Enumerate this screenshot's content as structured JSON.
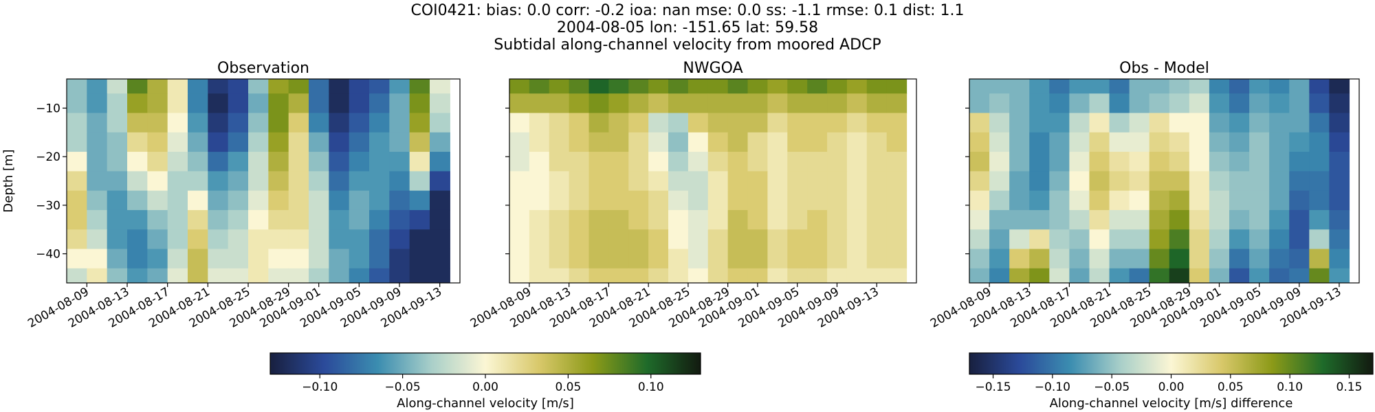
{
  "figure": {
    "title_lines": [
      "COI0421: bias: 0.0  corr: -0.2  ioa: nan  mse: 0.0  ss: -1.1  rmse: 0.1  dist: 1.1",
      "2004-08-05 lon: -151.65 lat: 59.58",
      "Subtidal along-channel velocity from moored ADCP"
    ]
  },
  "colors": {
    "colormap": [
      "#18203f",
      "#2b4a9a",
      "#3b8db0",
      "#a9cfc9",
      "#fbf6d4",
      "#d8c86a",
      "#8c9a18",
      "#1f6b2a",
      "#121a10"
    ]
  },
  "chart_data": [
    {
      "type": "heatmap",
      "panel": "observation",
      "title": "Observation",
      "ylabel": "Depth [m]",
      "xlabel": "",
      "x_range": [
        "2004-08-07",
        "2004-09-15"
      ],
      "x_ticks": [
        "2004-08-09",
        "2004-08-13",
        "2004-08-17",
        "2004-08-21",
        "2004-08-25",
        "2004-08-29",
        "2004-09-01",
        "2004-09-05",
        "2004-09-09",
        "2004-09-13"
      ],
      "ylim": [
        -46,
        -4
      ],
      "y_ticks": [
        -10,
        -20,
        -30,
        -40
      ],
      "y_tick_labels": [
        "−10",
        "−20",
        "−30",
        "−40"
      ],
      "depths": [
        -5,
        -9,
        -13,
        -17,
        -21,
        -25,
        -29,
        -33,
        -37,
        -41,
        -45
      ],
      "dates": [
        "2004-08-08",
        "2004-08-10",
        "2004-08-12",
        "2004-08-14",
        "2004-08-16",
        "2004-08-18",
        "2004-08-20",
        "2004-08-22",
        "2004-08-24",
        "2004-08-26",
        "2004-08-28",
        "2004-08-30",
        "2004-09-01",
        "2004-09-03",
        "2004-09-05",
        "2004-09-07",
        "2004-09-09",
        "2004-09-11",
        "2004-09-13"
      ],
      "values": [
        [
          -0.04,
          -0.06,
          -0.02,
          0.08,
          0.05,
          0.01,
          -0.07,
          -0.11,
          -0.1,
          -0.04,
          0.06,
          0.07,
          -0.08,
          -0.12,
          -0.1,
          -0.09,
          -0.06,
          0.08,
          -0.01
        ],
        [
          -0.04,
          -0.06,
          -0.03,
          0.06,
          0.05,
          0.01,
          -0.07,
          -0.12,
          -0.1,
          -0.05,
          0.07,
          0.05,
          -0.08,
          -0.12,
          -0.1,
          -0.08,
          -0.05,
          0.07,
          -0.02
        ],
        [
          -0.03,
          -0.05,
          -0.03,
          0.04,
          0.04,
          0.0,
          -0.06,
          -0.11,
          -0.09,
          -0.04,
          0.07,
          0.03,
          -0.07,
          -0.11,
          -0.09,
          -0.07,
          -0.05,
          0.06,
          -0.03
        ],
        [
          -0.03,
          -0.05,
          -0.04,
          0.02,
          0.03,
          -0.01,
          -0.05,
          -0.1,
          -0.08,
          -0.03,
          0.06,
          0.02,
          -0.05,
          -0.1,
          -0.08,
          -0.06,
          -0.05,
          0.04,
          -0.05
        ],
        [
          0.0,
          -0.05,
          -0.04,
          0.0,
          0.02,
          -0.02,
          -0.04,
          -0.08,
          -0.06,
          -0.02,
          0.05,
          0.02,
          -0.04,
          -0.09,
          -0.07,
          -0.06,
          -0.06,
          0.01,
          -0.07
        ],
        [
          0.02,
          -0.05,
          -0.05,
          -0.02,
          0.0,
          -0.03,
          -0.03,
          -0.06,
          -0.05,
          -0.02,
          0.04,
          0.02,
          -0.03,
          -0.08,
          -0.06,
          -0.06,
          -0.07,
          -0.03,
          -0.1
        ],
        [
          0.03,
          -0.04,
          -0.06,
          -0.04,
          -0.02,
          -0.03,
          0.0,
          -0.05,
          -0.04,
          -0.01,
          0.03,
          0.02,
          -0.02,
          -0.07,
          -0.05,
          -0.06,
          -0.08,
          -0.07,
          -0.12
        ],
        [
          0.03,
          -0.03,
          -0.06,
          -0.06,
          -0.04,
          -0.03,
          0.02,
          -0.04,
          -0.03,
          0.0,
          0.02,
          0.02,
          -0.02,
          -0.06,
          -0.05,
          -0.07,
          -0.09,
          -0.1,
          -0.12
        ],
        [
          0.02,
          -0.02,
          -0.06,
          -0.07,
          -0.05,
          -0.03,
          0.03,
          -0.03,
          -0.02,
          0.01,
          0.01,
          0.01,
          -0.02,
          -0.06,
          -0.06,
          -0.08,
          -0.1,
          -0.12,
          -0.12
        ],
        [
          0.0,
          0.0,
          -0.05,
          -0.07,
          -0.06,
          -0.02,
          0.04,
          -0.02,
          -0.02,
          0.01,
          0.0,
          0.0,
          -0.02,
          -0.05,
          -0.06,
          -0.08,
          -0.11,
          -0.12,
          -0.12
        ],
        [
          -0.02,
          0.01,
          -0.04,
          -0.06,
          -0.05,
          -0.01,
          0.04,
          -0.01,
          -0.01,
          0.01,
          -0.01,
          -0.01,
          -0.03,
          -0.05,
          -0.07,
          -0.09,
          -0.11,
          -0.12,
          -0.12
        ]
      ]
    },
    {
      "type": "heatmap",
      "panel": "model",
      "title": "NWGOA",
      "ylabel": "",
      "xlabel": "",
      "x_range": [
        "2004-08-07",
        "2004-09-17"
      ],
      "x_ticks": [
        "2004-08-09",
        "2004-08-13",
        "2004-08-17",
        "2004-08-21",
        "2004-08-25",
        "2004-08-29",
        "2004-09-01",
        "2004-09-05",
        "2004-09-09",
        "2004-09-13"
      ],
      "ylim": [
        -46,
        -4
      ],
      "y_ticks": [
        -10,
        -20,
        -30,
        -40
      ],
      "y_tick_labels": [
        "",
        "",
        "",
        ""
      ],
      "depths": [
        -5,
        -9,
        -13,
        -17,
        -21,
        -25,
        -29,
        -33,
        -37,
        -41,
        -45
      ],
      "dates": [
        "2004-08-08",
        "2004-08-10",
        "2004-08-12",
        "2004-08-14",
        "2004-08-16",
        "2004-08-18",
        "2004-08-20",
        "2004-08-22",
        "2004-08-24",
        "2004-08-26",
        "2004-08-28",
        "2004-08-30",
        "2004-09-01",
        "2004-09-03",
        "2004-09-05",
        "2004-09-07",
        "2004-09-09",
        "2004-09-11",
        "2004-09-13",
        "2004-09-15"
      ],
      "values": [
        [
          0.07,
          0.08,
          0.07,
          0.08,
          0.1,
          0.09,
          0.08,
          0.07,
          0.08,
          0.07,
          0.07,
          0.08,
          0.07,
          0.06,
          0.07,
          0.08,
          0.07,
          0.06,
          0.07,
          0.07
        ],
        [
          0.05,
          0.05,
          0.05,
          0.06,
          0.07,
          0.06,
          0.05,
          0.04,
          0.05,
          0.05,
          0.05,
          0.05,
          0.05,
          0.04,
          0.05,
          0.05,
          0.05,
          0.04,
          0.05,
          0.05
        ],
        [
          0.0,
          0.01,
          0.02,
          0.03,
          0.05,
          0.04,
          0.03,
          -0.02,
          -0.03,
          0.03,
          0.04,
          0.04,
          0.04,
          0.02,
          0.03,
          0.03,
          0.03,
          0.02,
          0.03,
          0.03
        ],
        [
          -0.01,
          0.01,
          0.02,
          0.03,
          0.04,
          0.04,
          0.02,
          -0.01,
          -0.04,
          0.0,
          0.03,
          0.04,
          0.02,
          0.01,
          0.03,
          0.03,
          0.02,
          0.01,
          0.02,
          0.03
        ],
        [
          -0.01,
          0.0,
          0.02,
          0.02,
          0.03,
          0.03,
          0.02,
          0.0,
          -0.03,
          -0.01,
          0.02,
          0.03,
          0.02,
          0.01,
          0.02,
          0.02,
          0.02,
          0.01,
          0.02,
          0.02
        ],
        [
          0.0,
          0.0,
          0.01,
          0.02,
          0.03,
          0.03,
          0.02,
          0.01,
          -0.02,
          -0.02,
          0.01,
          0.03,
          0.03,
          0.01,
          0.02,
          0.02,
          0.02,
          0.01,
          0.02,
          0.02
        ],
        [
          0.0,
          0.0,
          0.01,
          0.02,
          0.03,
          0.03,
          0.03,
          0.02,
          -0.01,
          -0.02,
          0.01,
          0.03,
          0.03,
          0.01,
          0.02,
          0.02,
          0.02,
          0.01,
          0.02,
          0.02
        ],
        [
          0.0,
          0.01,
          0.02,
          0.03,
          0.04,
          0.04,
          0.03,
          0.02,
          0.0,
          -0.01,
          0.01,
          0.04,
          0.03,
          0.01,
          0.02,
          0.03,
          0.02,
          0.01,
          0.02,
          0.02
        ],
        [
          0.0,
          0.01,
          0.02,
          0.03,
          0.04,
          0.04,
          0.04,
          0.03,
          0.0,
          -0.01,
          0.02,
          0.04,
          0.04,
          0.02,
          0.03,
          0.03,
          0.02,
          0.01,
          0.02,
          0.02
        ],
        [
          0.0,
          0.01,
          0.02,
          0.03,
          0.04,
          0.04,
          0.04,
          0.03,
          0.01,
          -0.01,
          0.02,
          0.04,
          0.04,
          0.02,
          0.03,
          0.03,
          0.02,
          0.01,
          0.02,
          0.02
        ],
        [
          0.0,
          0.01,
          0.01,
          0.02,
          0.03,
          0.03,
          0.03,
          0.02,
          0.01,
          0.0,
          0.02,
          0.03,
          0.03,
          0.01,
          0.02,
          0.02,
          0.01,
          0.01,
          0.01,
          0.01
        ]
      ]
    },
    {
      "type": "heatmap",
      "panel": "difference",
      "title": "Obs - Model",
      "ylabel": "",
      "xlabel": "",
      "x_range": [
        "2004-08-07",
        "2004-09-15"
      ],
      "x_ticks": [
        "2004-08-09",
        "2004-08-13",
        "2004-08-17",
        "2004-08-21",
        "2004-08-25",
        "2004-08-29",
        "2004-09-01",
        "2004-09-05",
        "2004-09-09",
        "2004-09-13"
      ],
      "ylim": [
        -46,
        -4
      ],
      "y_ticks": [
        -10,
        -20,
        -30,
        -40
      ],
      "y_tick_labels": [
        "",
        "",
        "",
        ""
      ],
      "depths": [
        -5,
        -9,
        -13,
        -17,
        -21,
        -25,
        -29,
        -33,
        -37,
        -41,
        -45
      ],
      "dates": [
        "2004-08-08",
        "2004-08-10",
        "2004-08-12",
        "2004-08-14",
        "2004-08-16",
        "2004-08-18",
        "2004-08-20",
        "2004-08-22",
        "2004-08-24",
        "2004-08-26",
        "2004-08-28",
        "2004-08-30",
        "2004-09-01",
        "2004-09-03",
        "2004-09-05",
        "2004-09-07",
        "2004-09-09",
        "2004-09-11",
        "2004-09-13"
      ],
      "values": [
        [
          -0.06,
          -0.06,
          -0.06,
          -0.08,
          -0.1,
          -0.08,
          -0.08,
          -0.1,
          -0.06,
          -0.06,
          -0.05,
          -0.04,
          -0.09,
          -0.11,
          -0.08,
          -0.09,
          -0.07,
          -0.13,
          -0.16
        ],
        [
          -0.06,
          -0.05,
          -0.06,
          -0.08,
          -0.09,
          -0.06,
          -0.04,
          -0.09,
          -0.06,
          -0.05,
          -0.04,
          -0.02,
          -0.08,
          -0.1,
          -0.07,
          -0.08,
          -0.07,
          -0.12,
          -0.15
        ],
        [
          0.03,
          -0.03,
          -0.06,
          -0.08,
          -0.08,
          -0.03,
          0.01,
          -0.04,
          -0.02,
          0.02,
          0.0,
          0.0,
          -0.07,
          -0.08,
          -0.06,
          -0.07,
          -0.07,
          -0.1,
          -0.14
        ],
        [
          0.04,
          -0.02,
          -0.06,
          -0.09,
          -0.07,
          -0.02,
          0.03,
          -0.01,
          -0.01,
          0.03,
          0.02,
          0.0,
          -0.06,
          -0.07,
          -0.05,
          -0.07,
          -0.08,
          -0.09,
          -0.13
        ],
        [
          0.05,
          -0.01,
          -0.06,
          -0.09,
          -0.07,
          -0.01,
          0.04,
          0.02,
          0.01,
          0.04,
          0.03,
          0.0,
          -0.05,
          -0.06,
          -0.05,
          -0.07,
          -0.09,
          -0.09,
          -0.12
        ],
        [
          0.03,
          -0.02,
          -0.07,
          -0.09,
          -0.06,
          0.0,
          0.05,
          0.03,
          0.02,
          0.05,
          0.05,
          0.01,
          -0.04,
          -0.05,
          -0.05,
          -0.07,
          -0.1,
          -0.1,
          -0.12
        ],
        [
          0.01,
          -0.04,
          -0.07,
          -0.08,
          -0.05,
          -0.01,
          0.04,
          0.01,
          0.0,
          0.06,
          0.07,
          0.01,
          -0.03,
          -0.05,
          -0.05,
          -0.07,
          -0.11,
          -0.1,
          -0.12
        ],
        [
          -0.01,
          -0.06,
          -0.06,
          -0.06,
          -0.05,
          -0.03,
          0.02,
          -0.02,
          -0.02,
          0.07,
          0.09,
          0.02,
          -0.03,
          -0.06,
          -0.05,
          -0.08,
          -0.12,
          -0.08,
          -0.11
        ],
        [
          -0.03,
          -0.07,
          -0.02,
          0.02,
          -0.04,
          -0.05,
          0.0,
          -0.04,
          -0.04,
          0.08,
          0.11,
          0.03,
          -0.04,
          -0.08,
          -0.06,
          -0.09,
          -0.12,
          -0.04,
          -0.1
        ],
        [
          -0.05,
          -0.08,
          0.04,
          0.06,
          -0.03,
          -0.06,
          -0.02,
          -0.06,
          -0.06,
          0.1,
          0.13,
          0.03,
          -0.05,
          -0.1,
          -0.07,
          -0.1,
          -0.11,
          0.06,
          -0.09
        ],
        [
          -0.06,
          -0.09,
          0.07,
          0.09,
          -0.02,
          -0.07,
          -0.03,
          -0.08,
          -0.1,
          0.12,
          0.15,
          0.04,
          -0.06,
          -0.12,
          -0.08,
          -0.11,
          -0.1,
          0.1,
          -0.08
        ]
      ]
    }
  ],
  "colorbars": [
    {
      "label": "Along-channel velocity [m/s]",
      "vmin": -0.13,
      "vmax": 0.13,
      "ticks": [
        -0.1,
        -0.05,
        0.0,
        0.05,
        0.1
      ],
      "tick_labels": [
        "−0.10",
        "−0.05",
        "0.00",
        "0.05",
        "0.10"
      ]
    },
    {
      "label": "Along-channel velocity [m/s] difference",
      "vmin": -0.17,
      "vmax": 0.17,
      "ticks": [
        -0.15,
        -0.1,
        -0.05,
        0.0,
        0.05,
        0.1,
        0.15
      ],
      "tick_labels": [
        "−0.15",
        "−0.10",
        "−0.05",
        "0.00",
        "0.05",
        "0.10",
        "0.15"
      ]
    }
  ]
}
